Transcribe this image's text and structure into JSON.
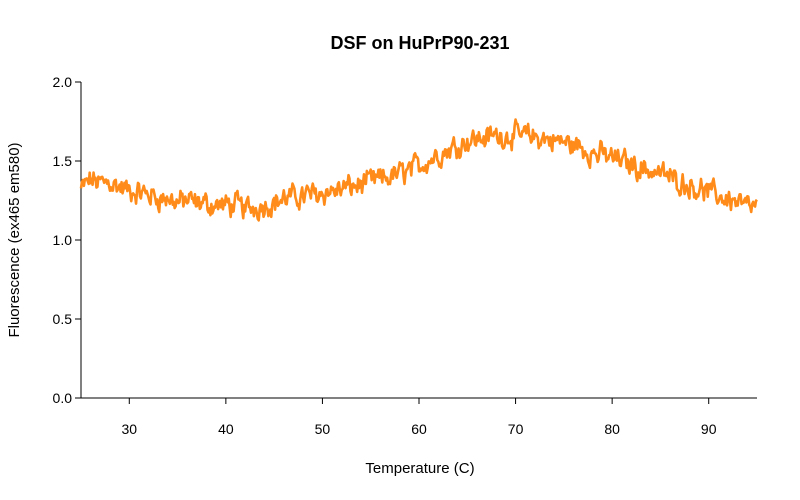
{
  "chart_data": {
    "type": "line",
    "title": "DSF on HuPrP90-231",
    "xlabel": "Temperature (C)",
    "ylabel": "Fluorescence (ex465 em580)",
    "xlim": [
      25,
      95
    ],
    "ylim": [
      0,
      2
    ],
    "x_ticks": [
      "30",
      "40",
      "50",
      "60",
      "70",
      "80",
      "90"
    ],
    "y_ticks": [
      "0.0",
      "0.5",
      "1.0",
      "1.5",
      "2.0"
    ],
    "grid": false,
    "legend": "none",
    "series": [
      {
        "color": "#FF8C1A",
        "x": [
          25,
          26,
          27,
          28,
          29,
          30,
          31,
          32,
          33,
          34,
          35,
          36,
          37,
          38,
          39,
          40,
          41,
          42,
          43,
          44,
          45,
          46,
          47,
          48,
          49,
          50,
          51,
          52,
          53,
          54,
          55,
          56,
          57,
          58,
          59,
          60,
          61,
          62,
          63,
          64,
          65,
          66,
          67,
          68,
          69,
          70,
          71,
          72,
          73,
          74,
          75,
          76,
          77,
          78,
          79,
          80,
          81,
          82,
          83,
          84,
          85,
          86,
          87,
          88,
          89,
          90,
          91,
          92,
          93,
          94,
          95
        ],
        "y": [
          1.32,
          1.38,
          1.36,
          1.37,
          1.33,
          1.31,
          1.3,
          1.29,
          1.27,
          1.26,
          1.24,
          1.25,
          1.23,
          1.23,
          1.22,
          1.22,
          1.22,
          1.2,
          1.21,
          1.22,
          1.24,
          1.26,
          1.27,
          1.28,
          1.29,
          1.3,
          1.31,
          1.32,
          1.34,
          1.35,
          1.37,
          1.38,
          1.4,
          1.42,
          1.44,
          1.47,
          1.51,
          1.54,
          1.57,
          1.6,
          1.63,
          1.64,
          1.65,
          1.66,
          1.66,
          1.66,
          1.66,
          1.65,
          1.64,
          1.63,
          1.62,
          1.6,
          1.58,
          1.55,
          1.54,
          1.52,
          1.5,
          1.48,
          1.46,
          1.44,
          1.42,
          1.4,
          1.37,
          1.35,
          1.33,
          1.3,
          1.28,
          1.26,
          1.24,
          1.21,
          1.2
        ]
      }
    ]
  }
}
